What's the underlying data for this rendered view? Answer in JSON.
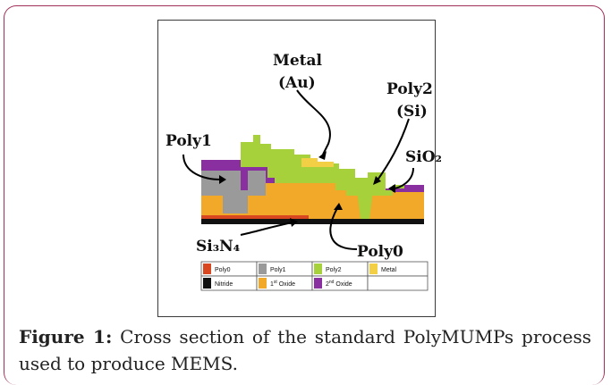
{
  "figure": {
    "labels": {
      "metal": "Metal",
      "metal_material": "(Au)",
      "poly2": "Poly2",
      "poly2_material": "(Si)",
      "poly1": "Poly1",
      "sio2": "SiO₂",
      "si3n4": "Si₃N₄",
      "poly0": "Poly0"
    },
    "legend": [
      {
        "label": "Poly0",
        "color": "#d8471f"
      },
      {
        "label": "Poly1",
        "color": "#9a9a9a"
      },
      {
        "label": "Poly2",
        "color": "#a6d13a"
      },
      {
        "label": "Metal",
        "color": "#f3cf45"
      },
      {
        "label": "Nitride",
        "color": "#111111"
      },
      {
        "label": "1st Oxide",
        "color": "#f2a92a"
      },
      {
        "label": "2nd Oxide",
        "color": "#8a2fa0"
      }
    ],
    "legend_ordinals": {
      "first": "st",
      "second": "nd"
    }
  },
  "caption": {
    "label": "Figure 1:",
    "text": " Cross section of the standard PolyMUMPs process used to produce MEMS."
  }
}
